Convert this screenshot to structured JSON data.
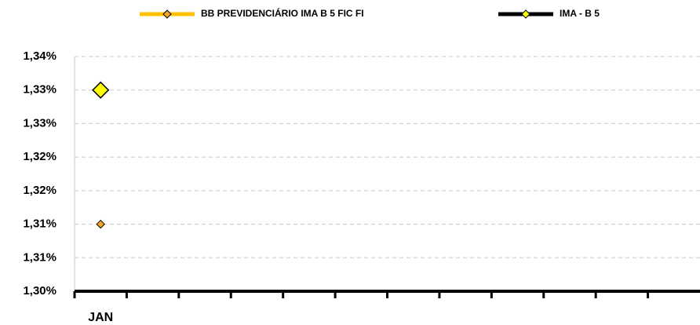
{
  "chart_data": {
    "type": "line",
    "categories": [
      "JAN",
      null,
      null,
      null,
      null,
      null,
      null,
      null,
      null,
      null,
      null,
      null
    ],
    "series": [
      {
        "name": "BB PREVIDENCIÁRIO IMA B 5 FIC FI",
        "color": "#ffc000",
        "marker_color": "#f5a623",
        "values": [
          1.31,
          null,
          null,
          null,
          null,
          null,
          null,
          null,
          null,
          null,
          null,
          null
        ]
      },
      {
        "name": "IMA - B 5",
        "color": "#000000",
        "marker_color": "#ffff00",
        "values": [
          1.33,
          null,
          null,
          null,
          null,
          null,
          null,
          null,
          null,
          null,
          null,
          null
        ]
      }
    ],
    "ylim": [
      1.3,
      1.335
    ],
    "yticks": [
      {
        "value": 1.3,
        "label": "1,30%"
      },
      {
        "value": 1.305,
        "label": "1,31%"
      },
      {
        "value": 1.31,
        "label": "1,31%"
      },
      {
        "value": 1.315,
        "label": "1,32%"
      },
      {
        "value": 1.32,
        "label": "1,32%"
      },
      {
        "value": 1.325,
        "label": "1,33%"
      },
      {
        "value": 1.33,
        "label": "1,33%"
      },
      {
        "value": 1.335,
        "label": "1,34%"
      }
    ],
    "grid": true,
    "legend": "top"
  }
}
